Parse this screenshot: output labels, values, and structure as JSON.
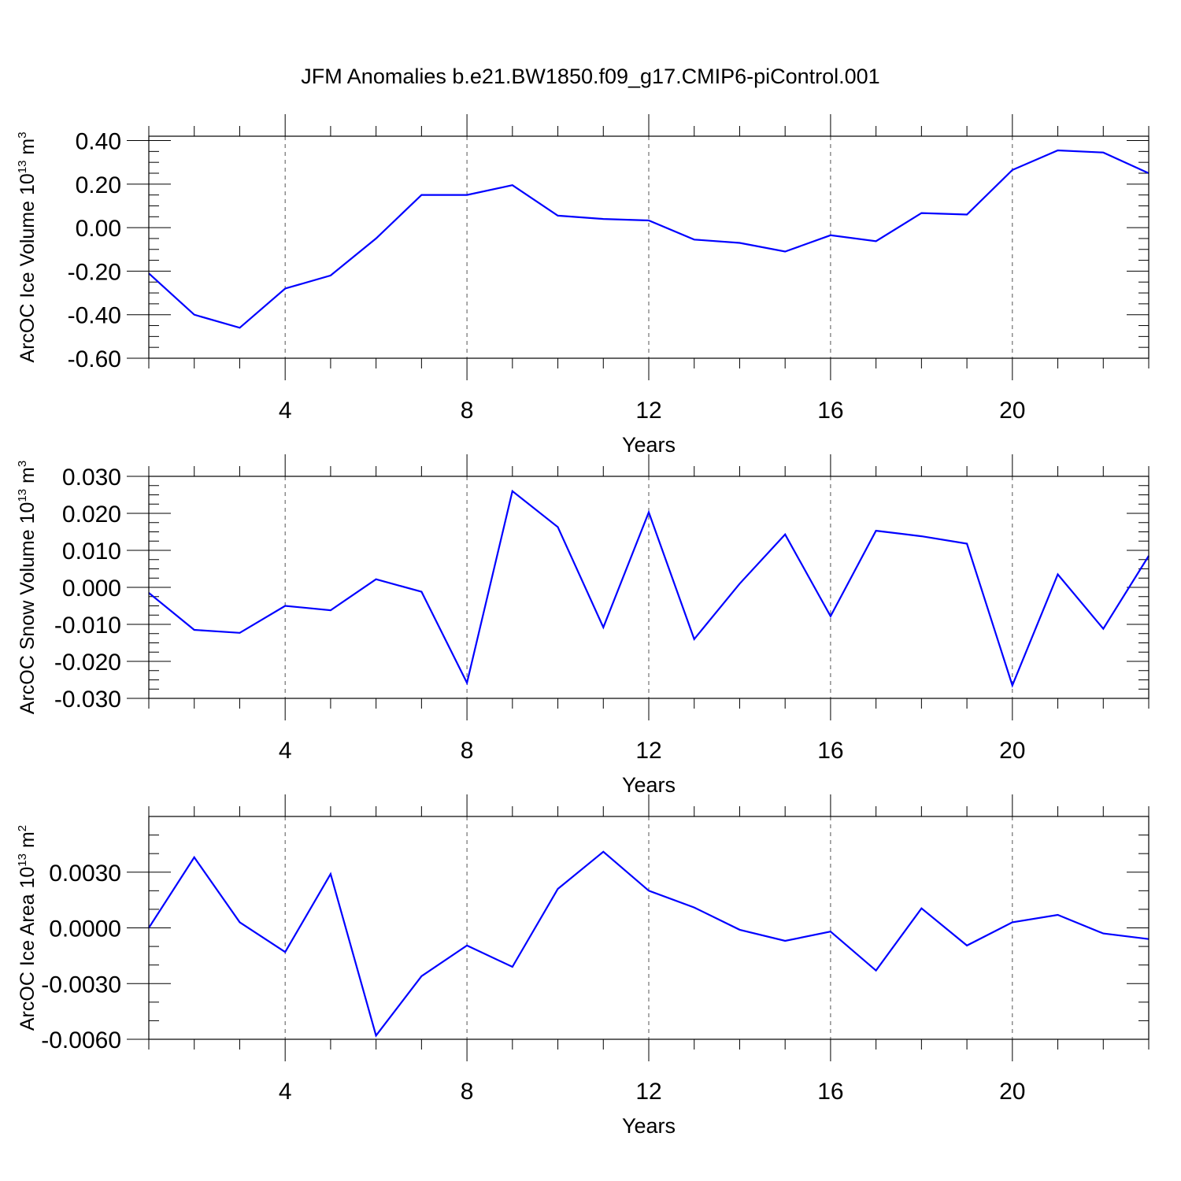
{
  "title": "JFM Anomalies b.e21.BW1850.f09_g17.CMIP6-piControl.001",
  "colors": {
    "series": "#0000ff",
    "grid": "#555555",
    "axis": "#000000"
  },
  "chart_data": [
    {
      "type": "line",
      "title": "JFM Anomalies b.e21.BW1850.f09_g17.CMIP6-piControl.001",
      "xlabel": "Years",
      "ylabel": {
        "text": "ArcOC Ice Volume 10",
        "exp": "13",
        "unit": " m",
        "unit_exp": "3"
      },
      "xlim": [
        1,
        23
      ],
      "ylim": [
        -0.6,
        0.42
      ],
      "xticks": [
        4,
        8,
        12,
        16,
        20
      ],
      "xtick_labels": [
        "4",
        "8",
        "12",
        "16",
        "20"
      ],
      "yticks": [
        0.4,
        0.2,
        0.0,
        -0.2,
        -0.4,
        -0.6
      ],
      "ytick_labels": [
        "0.40",
        "0.20",
        "0.00",
        "-0.20",
        "-0.40",
        "-0.60"
      ],
      "yminor_step": 0.05,
      "grid": "vertical dashed at major x ticks",
      "x": [
        1,
        2,
        3,
        4,
        5,
        6,
        7,
        8,
        9,
        10,
        11,
        12,
        13,
        14,
        15,
        16,
        17,
        18,
        19,
        20,
        21,
        22,
        23
      ],
      "values": [
        -0.21,
        -0.4,
        -0.46,
        -0.28,
        -0.22,
        -0.05,
        0.15,
        0.15,
        0.195,
        0.055,
        0.04,
        0.033,
        -0.055,
        -0.07,
        -0.11,
        -0.035,
        -0.062,
        0.067,
        0.06,
        0.265,
        0.355,
        0.345,
        0.25
      ]
    },
    {
      "type": "line",
      "xlabel": "Years",
      "ylabel": {
        "text": "ArcOC Snow Volume 10",
        "exp": "13",
        "unit": " m",
        "unit_exp": "3"
      },
      "xlim": [
        1,
        23
      ],
      "ylim": [
        -0.03,
        0.03
      ],
      "xticks": [
        4,
        8,
        12,
        16,
        20
      ],
      "xtick_labels": [
        "4",
        "8",
        "12",
        "16",
        "20"
      ],
      "yticks": [
        0.03,
        0.02,
        0.01,
        0.0,
        -0.01,
        -0.02,
        -0.03
      ],
      "ytick_labels": [
        "0.030",
        "0.020",
        "0.010",
        "0.000",
        "-0.010",
        "-0.020",
        "-0.030"
      ],
      "yminor_step": 0.0025,
      "grid": "vertical dashed at major x ticks",
      "x": [
        1,
        2,
        3,
        4,
        5,
        6,
        7,
        8,
        9,
        10,
        11,
        12,
        13,
        14,
        15,
        16,
        17,
        18,
        19,
        20,
        21,
        22,
        23
      ],
      "values": [
        -0.0015,
        -0.0115,
        -0.0123,
        -0.005,
        -0.0062,
        0.0022,
        -0.0012,
        -0.0258,
        0.026,
        0.0163,
        -0.0108,
        0.0203,
        -0.014,
        0.001,
        0.0143,
        -0.0078,
        0.0153,
        0.0138,
        0.0118,
        -0.0265,
        0.0035,
        -0.0112,
        0.0085
      ]
    },
    {
      "type": "line",
      "xlabel": "Years",
      "ylabel": {
        "text": "ArcOC Ice Area 10",
        "exp": "13",
        "unit": " m",
        "unit_exp": "2"
      },
      "xlim": [
        1,
        23
      ],
      "ylim": [
        -0.006,
        0.006
      ],
      "xticks": [
        4,
        8,
        12,
        16,
        20
      ],
      "xtick_labels": [
        "4",
        "8",
        "12",
        "16",
        "20"
      ],
      "yticks": [
        0.003,
        0.0,
        -0.003,
        -0.006
      ],
      "ytick_labels": [
        "0.0030",
        "0.0000",
        "-0.0030",
        "-0.0060"
      ],
      "yminor_step": 0.001,
      "grid": "vertical dashed at major x ticks",
      "x": [
        1,
        2,
        3,
        4,
        5,
        6,
        7,
        8,
        9,
        10,
        11,
        12,
        13,
        14,
        15,
        16,
        17,
        18,
        19,
        20,
        21,
        22,
        23
      ],
      "values": [
        0.0,
        0.0038,
        0.0003,
        -0.0013,
        0.0029,
        -0.0058,
        -0.0026,
        -0.00095,
        -0.0021,
        0.0021,
        0.0041,
        0.002,
        0.0011,
        -0.0001,
        -0.0007,
        -0.0002,
        -0.0023,
        0.00105,
        -0.00095,
        0.0003,
        0.0007,
        -0.0003,
        -0.0006
      ]
    }
  ]
}
